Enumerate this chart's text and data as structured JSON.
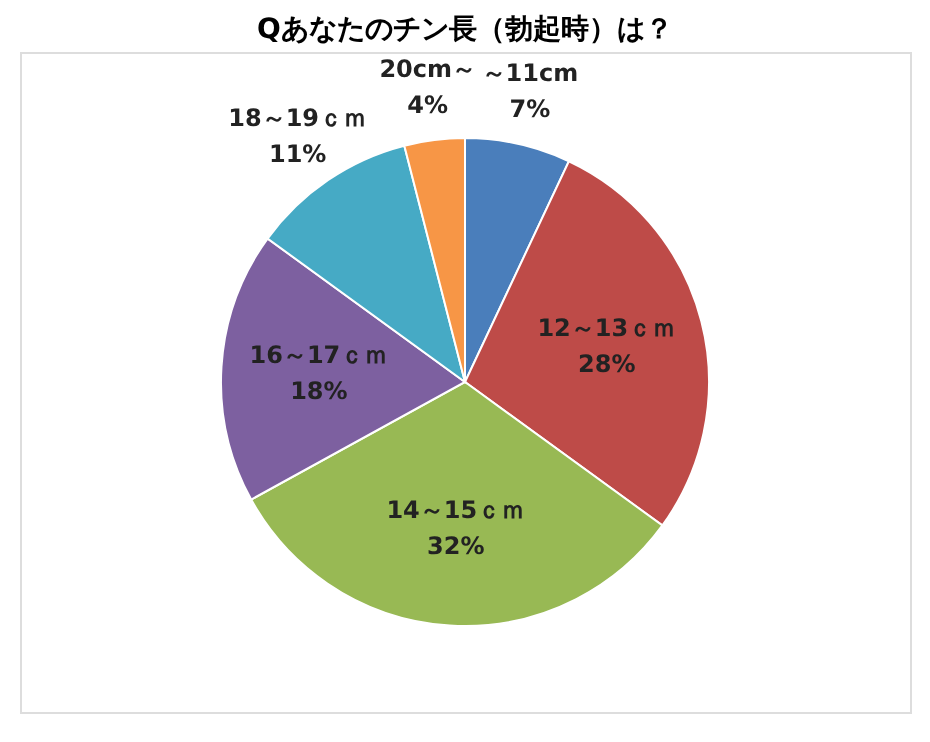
{
  "chart_data": {
    "type": "pie",
    "title": "Qあなたのチン長（勃起時）は？",
    "categories": [
      "～11cm",
      "12～13ｃｍ",
      "14～15ｃｍ",
      "16～17ｃｍ",
      "18～19ｃｍ",
      "20cm～"
    ],
    "values": [
      7,
      28,
      32,
      18,
      11,
      4
    ],
    "value_labels": [
      "7%",
      "28%",
      "32%",
      "18%",
      "11%",
      "4%"
    ],
    "colors": [
      "#4a7ebb",
      "#be4b48",
      "#98b954",
      "#7d60a0",
      "#46aac5",
      "#f79646"
    ],
    "legend": false
  }
}
